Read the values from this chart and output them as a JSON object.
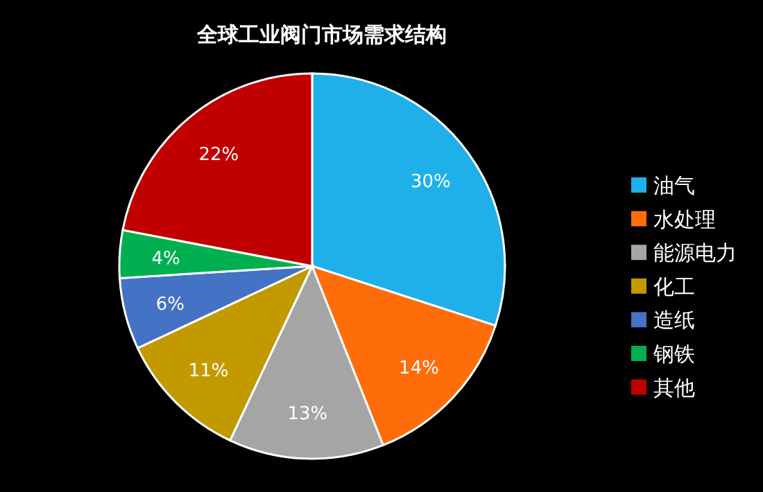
{
  "chart_data": {
    "type": "pie",
    "title": "全球工业阀门市场需求结构",
    "categories": [
      "油气",
      "水处理",
      "能源电力",
      "化工",
      "造纸",
      "钢铁",
      "其他"
    ],
    "values": [
      30,
      14,
      13,
      11,
      6,
      4,
      22
    ],
    "value_labels": [
      "30%",
      "14%",
      "13%",
      "11%",
      "6%",
      "4%",
      "22%"
    ],
    "colors": [
      "#1fb0ea",
      "#ff6d0a",
      "#a5a5a5",
      "#c29a00",
      "#4472c4",
      "#00b050",
      "#c00000"
    ],
    "legend": "right"
  }
}
